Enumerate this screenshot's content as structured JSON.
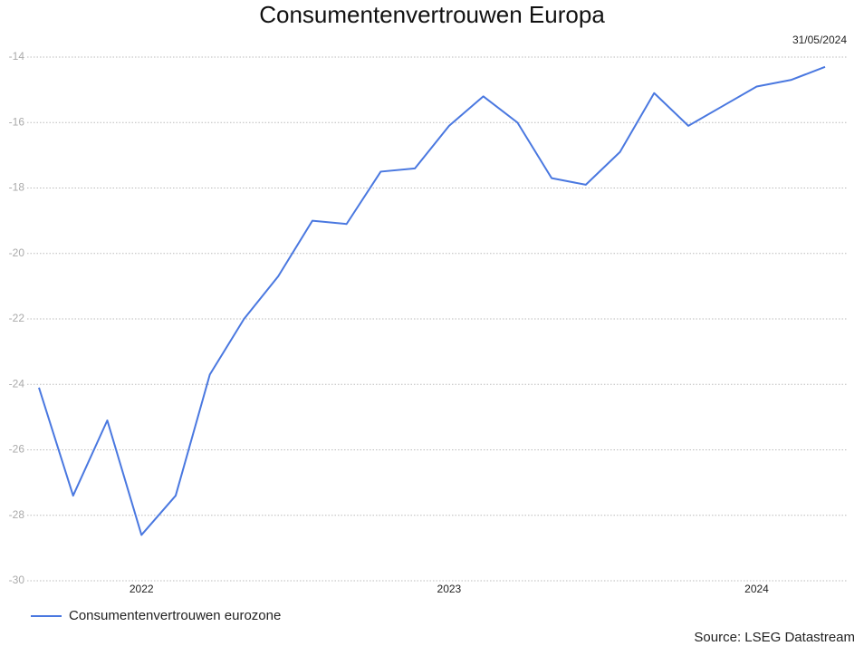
{
  "chart_data": {
    "type": "line",
    "title": "Consumentenvertrouwen Europa",
    "date": "31/05/2024",
    "source": "Source: LSEG Datastream",
    "categories": [
      null,
      null,
      null,
      "2022",
      null,
      null,
      null,
      null,
      null,
      null,
      null,
      null,
      "2023",
      null,
      null,
      null,
      null,
      null,
      null,
      null,
      null,
      "2024",
      null,
      null
    ],
    "series": [
      {
        "name": "Consumentenvertrouwen eurozone",
        "color": "#4a78e0",
        "values": [
          -24.1,
          -27.4,
          -25.1,
          -28.6,
          -27.4,
          -23.7,
          -22.0,
          -20.7,
          -19.0,
          -19.1,
          -17.5,
          -17.4,
          -16.1,
          -15.2,
          -16.0,
          -17.7,
          -17.9,
          -16.9,
          -15.1,
          -16.1,
          -15.5,
          -14.9,
          -14.7,
          -14.3
        ]
      }
    ],
    "ylim": [
      -30,
      -14
    ],
    "yticks": [
      -30,
      -28,
      -26,
      -24,
      -22,
      -20,
      -18,
      -16,
      -14
    ],
    "grid": true
  }
}
